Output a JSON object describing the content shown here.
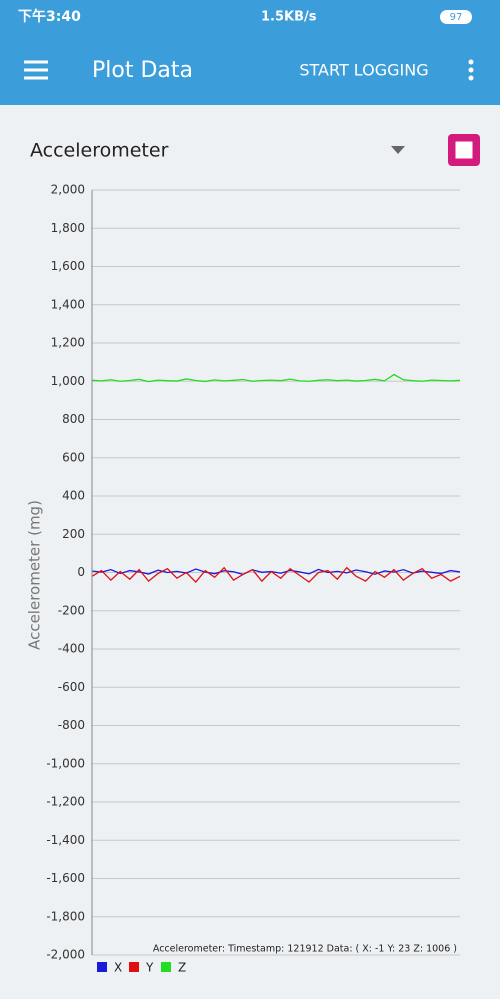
{
  "status": {
    "time": "下午3:40",
    "speed": "1.5KB/s",
    "battery": "97"
  },
  "app_bar": {
    "title": "Plot Data",
    "action": "START LOGGING"
  },
  "spinner": {
    "label": "Accelerometer"
  },
  "chart_data": {
    "type": "line",
    "ylabel": "Accelerometer (mg)",
    "annotation": "Accelerometer:  Timestamp: 121912  Data: ( X:   -1 Y:   23 Z: 1006 )",
    "ylim": [
      -2000,
      2000
    ],
    "yticks": [
      {
        "value": -2000,
        "label": "-2,000"
      },
      {
        "value": -1800,
        "label": "-1,800"
      },
      {
        "value": -1600,
        "label": "-1,600"
      },
      {
        "value": -1400,
        "label": "-1,400"
      },
      {
        "value": -1200,
        "label": "-1,200"
      },
      {
        "value": -1000,
        "label": "-1,000"
      },
      -800,
      -600,
      -400,
      -200,
      0,
      200,
      400,
      600,
      800,
      {
        "value": 1000,
        "label": "1,000"
      },
      {
        "value": 1200,
        "label": "1,200"
      },
      {
        "value": 1400,
        "label": "1,400"
      },
      {
        "value": 1600,
        "label": "1,600"
      },
      {
        "value": 1800,
        "label": "1,800"
      },
      {
        "value": 2000,
        "label": "2,000"
      }
    ],
    "grid": true,
    "series": [
      {
        "name": "X",
        "color": "#1a1adb",
        "values": [
          8,
          2,
          15,
          -5,
          10,
          3,
          -8,
          12,
          0,
          6,
          -3,
          18,
          2,
          -6,
          9,
          4,
          -10,
          14,
          1,
          5,
          -4,
          11,
          3,
          -7,
          16,
          0,
          6,
          -2,
          13,
          4,
          -9,
          8,
          2,
          15,
          -3,
          7,
          1,
          -5,
          10,
          3
        ]
      },
      {
        "name": "Y",
        "color": "#e01010",
        "values": [
          -20,
          10,
          -40,
          5,
          -35,
          15,
          -45,
          -5,
          20,
          -30,
          0,
          -50,
          10,
          -25,
          25,
          -40,
          -10,
          15,
          -45,
          5,
          -30,
          20,
          -15,
          -50,
          0,
          10,
          -35,
          25,
          -20,
          -45,
          5,
          -25,
          15,
          -40,
          -5,
          20,
          -30,
          -10,
          -45,
          -20
        ]
      },
      {
        "name": "Z",
        "color": "#22dd22",
        "values": [
          1005,
          1002,
          1008,
          1000,
          1004,
          1010,
          998,
          1006,
          1003,
          1001,
          1012,
          1004,
          999,
          1007,
          1002,
          1005,
          1009,
          1000,
          1004,
          1006,
          1003,
          1011,
          1002,
          1000,
          1005,
          1008,
          1003,
          1006,
          1001,
          1004,
          1010,
          1002,
          1035,
          1008,
          1003,
          1000,
          1006,
          1004,
          1002,
          1005
        ]
      }
    ]
  }
}
